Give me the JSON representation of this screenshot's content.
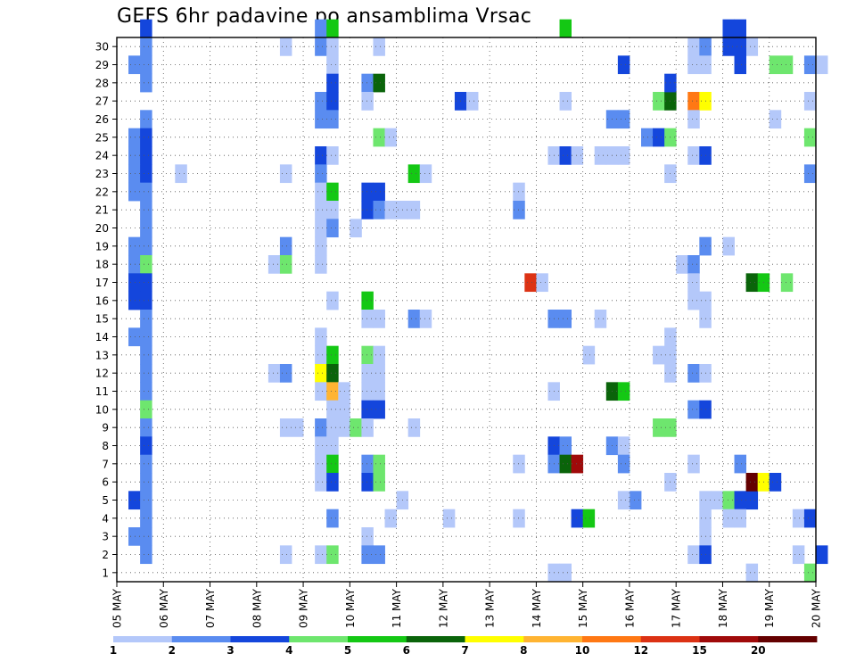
{
  "chart_data": {
    "type": "heatmap",
    "title": "GEFS 6hr padavine po ansamblima Vrsac",
    "xlabel": "",
    "ylabel": "",
    "x_axis": {
      "unit": "6-hour step",
      "range": [
        0,
        60
      ],
      "tick_labels": [
        "05 MAY",
        "06 MAY",
        "07 MAY",
        "08 MAY",
        "09 MAY",
        "10 MAY",
        "11 MAY",
        "12 MAY",
        "13 MAY",
        "14 MAY",
        "15 MAY",
        "16 MAY",
        "17 MAY",
        "18 MAY",
        "19 MAY",
        "20 MAY"
      ],
      "tick_positions": [
        0,
        4,
        8,
        12,
        16,
        20,
        24,
        28,
        32,
        36,
        40,
        44,
        48,
        52,
        56,
        60
      ]
    },
    "y_axis": {
      "range": [
        0,
        30
      ],
      "tick_labels": [
        "1",
        "2",
        "3",
        "4",
        "5",
        "6",
        "7",
        "8",
        "9",
        "10",
        "11",
        "12",
        "13",
        "14",
        "15",
        "16",
        "17",
        "18",
        "19",
        "20",
        "21",
        "22",
        "23",
        "24",
        "25",
        "26",
        "27",
        "28",
        "29",
        "30"
      ]
    },
    "grid": true,
    "colorbar": {
      "placement": "bottom",
      "labels": [
        "1",
        "2",
        "3",
        "4",
        "5",
        "6",
        "7",
        "8",
        "10",
        "12",
        "15",
        "20"
      ],
      "colors": [
        "#b4c8fa",
        "#5a8cf0",
        "#1446dc",
        "#6ee66e",
        "#14c814",
        "#0a640a",
        "#ffff00",
        "#ffb432",
        "#ff7814",
        "#dc3214",
        "#a00a0a",
        "#640000"
      ]
    },
    "cells": [
      [
        2,
        30,
        2
      ],
      [
        2,
        29,
        1
      ],
      [
        1,
        28,
        1
      ],
      [
        2,
        28,
        1
      ],
      [
        2,
        27,
        1
      ],
      [
        2,
        25,
        1
      ],
      [
        1,
        24,
        1
      ],
      [
        2,
        24,
        2
      ],
      [
        1,
        23,
        1
      ],
      [
        2,
        23,
        2
      ],
      [
        1,
        22,
        1
      ],
      [
        2,
        22,
        2
      ],
      [
        1,
        21,
        1
      ],
      [
        2,
        21,
        1
      ],
      [
        2,
        20,
        1
      ],
      [
        2,
        19,
        1
      ],
      [
        1,
        18,
        1
      ],
      [
        2,
        18,
        1
      ],
      [
        1,
        17,
        1
      ],
      [
        2,
        17,
        3
      ],
      [
        1,
        16,
        2
      ],
      [
        2,
        16,
        2
      ],
      [
        1,
        15,
        2
      ],
      [
        2,
        15,
        2
      ],
      [
        2,
        14,
        1
      ],
      [
        1,
        13,
        1
      ],
      [
        2,
        13,
        1
      ],
      [
        2,
        12,
        1
      ],
      [
        2,
        11,
        1
      ],
      [
        2,
        10,
        1
      ],
      [
        2,
        9,
        3
      ],
      [
        2,
        8,
        1
      ],
      [
        2,
        7,
        2
      ],
      [
        2,
        6,
        1
      ],
      [
        2,
        5,
        1
      ],
      [
        1,
        4,
        2
      ],
      [
        2,
        4,
        1
      ],
      [
        2,
        3,
        1
      ],
      [
        1,
        2,
        1
      ],
      [
        2,
        2,
        1
      ],
      [
        2,
        1,
        1
      ],
      [
        5,
        22,
        0
      ],
      [
        14,
        29,
        0
      ],
      [
        14,
        22,
        0
      ],
      [
        13,
        17,
        0
      ],
      [
        14,
        18,
        1
      ],
      [
        14,
        17,
        3
      ],
      [
        13,
        11,
        0
      ],
      [
        14,
        11,
        1
      ],
      [
        14,
        8,
        0
      ],
      [
        15,
        8,
        0
      ],
      [
        14,
        1,
        0
      ],
      [
        17,
        30,
        1
      ],
      [
        18,
        30,
        4
      ],
      [
        17,
        29,
        1
      ],
      [
        18,
        29,
        0
      ],
      [
        18,
        28,
        0
      ],
      [
        18,
        27,
        2
      ],
      [
        17,
        26,
        1
      ],
      [
        18,
        26,
        2
      ],
      [
        17,
        25,
        1
      ],
      [
        18,
        25,
        1
      ],
      [
        17,
        23,
        2
      ],
      [
        18,
        23,
        0
      ],
      [
        17,
        22,
        1
      ],
      [
        17,
        21,
        0
      ],
      [
        18,
        21,
        4
      ],
      [
        17,
        20,
        0
      ],
      [
        18,
        20,
        0
      ],
      [
        17,
        19,
        0
      ],
      [
        18,
        19,
        1
      ],
      [
        17,
        18,
        0
      ],
      [
        17,
        17,
        0
      ],
      [
        18,
        15,
        0
      ],
      [
        17,
        13,
        0
      ],
      [
        17,
        12,
        0
      ],
      [
        18,
        12,
        4
      ],
      [
        17,
        11,
        6
      ],
      [
        18,
        11,
        5
      ],
      [
        17,
        10,
        0
      ],
      [
        18,
        10,
        7
      ],
      [
        19,
        10,
        0
      ],
      [
        18,
        9,
        0
      ],
      [
        19,
        9,
        0
      ],
      [
        17,
        8,
        1
      ],
      [
        18,
        8,
        0
      ],
      [
        17,
        7,
        0
      ],
      [
        18,
        7,
        0
      ],
      [
        17,
        6,
        0
      ],
      [
        18,
        6,
        4
      ],
      [
        17,
        5,
        0
      ],
      [
        18,
        5,
        2
      ],
      [
        18,
        3,
        1
      ],
      [
        17,
        1,
        0
      ],
      [
        18,
        1,
        3
      ],
      [
        20,
        19,
        0
      ],
      [
        19,
        8,
        0
      ],
      [
        20,
        8,
        3
      ],
      [
        22,
        29,
        0
      ],
      [
        21,
        27,
        1
      ],
      [
        22,
        27,
        5
      ],
      [
        21,
        26,
        0
      ],
      [
        22,
        24,
        3
      ],
      [
        23,
        24,
        0
      ],
      [
        21,
        21,
        2
      ],
      [
        22,
        21,
        2
      ],
      [
        21,
        20,
        2
      ],
      [
        22,
        20,
        1
      ],
      [
        23,
        20,
        0
      ],
      [
        21,
        15,
        4
      ],
      [
        21,
        14,
        0
      ],
      [
        22,
        14,
        0
      ],
      [
        21,
        12,
        3
      ],
      [
        22,
        12,
        0
      ],
      [
        21,
        11,
        0
      ],
      [
        22,
        11,
        0
      ],
      [
        21,
        10,
        0
      ],
      [
        22,
        10,
        0
      ],
      [
        21,
        9,
        2
      ],
      [
        22,
        9,
        2
      ],
      [
        21,
        8,
        0
      ],
      [
        21,
        6,
        1
      ],
      [
        22,
        6,
        3
      ],
      [
        21,
        5,
        2
      ],
      [
        22,
        5,
        3
      ],
      [
        21,
        2,
        0
      ],
      [
        21,
        1,
        1
      ],
      [
        22,
        1,
        1
      ],
      [
        25,
        22,
        4
      ],
      [
        26,
        22,
        0
      ],
      [
        24,
        20,
        0
      ],
      [
        25,
        20,
        0
      ],
      [
        25,
        14,
        1
      ],
      [
        26,
        14,
        0
      ],
      [
        24,
        4,
        0
      ],
      [
        23,
        3,
        0
      ],
      [
        25,
        8,
        0
      ],
      [
        29,
        26,
        2
      ],
      [
        30,
        26,
        0
      ],
      [
        28,
        3,
        0
      ],
      [
        34,
        21,
        0
      ],
      [
        34,
        20,
        1
      ],
      [
        35,
        16,
        9
      ],
      [
        36,
        16,
        0
      ],
      [
        34,
        6,
        0
      ],
      [
        34,
        3,
        0
      ],
      [
        38,
        30,
        4
      ],
      [
        38,
        26,
        0
      ],
      [
        37,
        23,
        0
      ],
      [
        38,
        23,
        2
      ],
      [
        39,
        23,
        0
      ],
      [
        37,
        14,
        1
      ],
      [
        38,
        14,
        1
      ],
      [
        37,
        10,
        0
      ],
      [
        37,
        7,
        2
      ],
      [
        38,
        7,
        1
      ],
      [
        37,
        6,
        1
      ],
      [
        38,
        6,
        5
      ],
      [
        39,
        6,
        10
      ],
      [
        39,
        3,
        2
      ],
      [
        40,
        3,
        4
      ],
      [
        37,
        0,
        0
      ],
      [
        38,
        0,
        0
      ],
      [
        42,
        25,
        1
      ],
      [
        43,
        25,
        1
      ],
      [
        41,
        23,
        0
      ],
      [
        42,
        23,
        0
      ],
      [
        43,
        23,
        0
      ],
      [
        40,
        12,
        0
      ],
      [
        41,
        14,
        0
      ],
      [
        42,
        10,
        5
      ],
      [
        43,
        10,
        4
      ],
      [
        42,
        7,
        1
      ],
      [
        43,
        7,
        0
      ],
      [
        43,
        6,
        1
      ],
      [
        44,
        4,
        1
      ],
      [
        43,
        4,
        0
      ],
      [
        43,
        28,
        2
      ],
      [
        45,
        24,
        1
      ],
      [
        46,
        24,
        2
      ],
      [
        47,
        24,
        3
      ],
      [
        46,
        26,
        3
      ],
      [
        47,
        26,
        5
      ],
      [
        47,
        27,
        2
      ],
      [
        47,
        22,
        0
      ],
      [
        46,
        12,
        0
      ],
      [
        47,
        12,
        0
      ],
      [
        47,
        13,
        0
      ],
      [
        47,
        11,
        0
      ],
      [
        46,
        8,
        3
      ],
      [
        47,
        8,
        3
      ],
      [
        47,
        5,
        0
      ],
      [
        49,
        29,
        0
      ],
      [
        50,
        29,
        1
      ],
      [
        49,
        28,
        0
      ],
      [
        50,
        28,
        0
      ],
      [
        49,
        26,
        8
      ],
      [
        50,
        26,
        6
      ],
      [
        49,
        25,
        0
      ],
      [
        49,
        23,
        0
      ],
      [
        50,
        23,
        2
      ],
      [
        50,
        18,
        1
      ],
      [
        48,
        17,
        0
      ],
      [
        49,
        17,
        1
      ],
      [
        49,
        16,
        0
      ],
      [
        49,
        15,
        0
      ],
      [
        50,
        15,
        0
      ],
      [
        50,
        14,
        0
      ],
      [
        49,
        11,
        1
      ],
      [
        50,
        11,
        0
      ],
      [
        49,
        9,
        1
      ],
      [
        50,
        9,
        2
      ],
      [
        49,
        6,
        0
      ],
      [
        50,
        4,
        0
      ],
      [
        50,
        3,
        0
      ],
      [
        50,
        2,
        0
      ],
      [
        49,
        1,
        0
      ],
      [
        50,
        1,
        2
      ],
      [
        52,
        30,
        2
      ],
      [
        53,
        30,
        2
      ],
      [
        54,
        29,
        0
      ],
      [
        52,
        29,
        2
      ],
      [
        53,
        29,
        2
      ],
      [
        53,
        28,
        2
      ],
      [
        52,
        18,
        0
      ],
      [
        54,
        16,
        5
      ],
      [
        55,
        16,
        4
      ],
      [
        57,
        16,
        3
      ],
      [
        53,
        6,
        1
      ],
      [
        51,
        4,
        0
      ],
      [
        52,
        4,
        3
      ],
      [
        53,
        4,
        2
      ],
      [
        54,
        4,
        2
      ],
      [
        54,
        5,
        11
      ],
      [
        55,
        5,
        6
      ],
      [
        56,
        5,
        2
      ],
      [
        52,
        3,
        0
      ],
      [
        53,
        3,
        0
      ],
      [
        54,
        0,
        0
      ],
      [
        56,
        28,
        3
      ],
      [
        57,
        28,
        3
      ],
      [
        59,
        28,
        1
      ],
      [
        60,
        28,
        0
      ],
      [
        59,
        26,
        0
      ],
      [
        56,
        25,
        0
      ],
      [
        59,
        24,
        3
      ],
      [
        59,
        22,
        1
      ],
      [
        58,
        3,
        0
      ],
      [
        59,
        3,
        2
      ],
      [
        58,
        1,
        0
      ],
      [
        60,
        1,
        2
      ],
      [
        59,
        0,
        3
      ]
    ]
  }
}
